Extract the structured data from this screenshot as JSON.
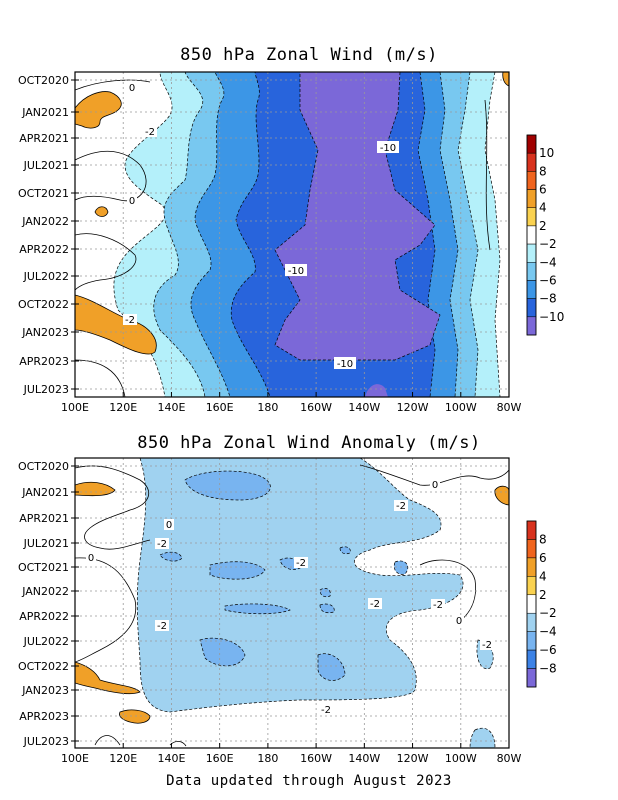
{
  "footer": "Data updated through August 2023",
  "chart_data": [
    {
      "type": "heatmap",
      "title": "850 hPa Zonal Wind (m/s)",
      "x_tick_labels": [
        "100E",
        "120E",
        "140E",
        "160E",
        "180",
        "160W",
        "140W",
        "120W",
        "100W",
        "80W"
      ],
      "y_tick_labels": [
        "OCT2020",
        "JAN2021",
        "APR2021",
        "JUL2021",
        "OCT2021",
        "JAN2022",
        "APR2022",
        "JUL2022",
        "OCT2022",
        "JAN2023",
        "APR2023",
        "JUL2023"
      ],
      "colorbar_labels": [
        "10",
        "8",
        "6",
        "4",
        "2",
        "-2",
        "-4",
        "-6",
        "-8",
        "-10"
      ],
      "colorbar_colors": [
        "#a00000",
        "#d8321e",
        "#f0641e",
        "#f0a028",
        "#fad250",
        "#ffffff",
        "#b4f0fa",
        "#78c8f0",
        "#3c96e6",
        "#2864dc",
        "#7b68d8"
      ],
      "contour_labels": [
        "0",
        "-2",
        "0",
        "-10",
        "-10",
        "-2",
        "-10"
      ],
      "grid": true
    },
    {
      "type": "heatmap",
      "title": "850 hPa Zonal Wind Anomaly (m/s)",
      "x_tick_labels": [
        "100E",
        "120E",
        "140E",
        "160E",
        "180",
        "160W",
        "140W",
        "120W",
        "100W",
        "80W"
      ],
      "y_tick_labels": [
        "OCT2020",
        "JAN2021",
        "APR2021",
        "JUL2021",
        "OCT2021",
        "JAN2022",
        "APR2022",
        "JUL2022",
        "OCT2022",
        "JAN2023",
        "APR2023",
        "JUL2023"
      ],
      "colorbar_labels": [
        "8",
        "6",
        "4",
        "2",
        "-2",
        "-4",
        "-6",
        "-8"
      ],
      "colorbar_colors": [
        "#d8321e",
        "#f0641e",
        "#f0a028",
        "#fad250",
        "#ffffff",
        "#a0d2f0",
        "#78b4f0",
        "#3c82e6",
        "#7b68d8"
      ],
      "contour_labels": [
        "0",
        "-2",
        "0",
        "0",
        "-2",
        "-2",
        "-2",
        "-2",
        "-2",
        "0",
        "-2",
        "-2"
      ],
      "grid": true
    }
  ]
}
